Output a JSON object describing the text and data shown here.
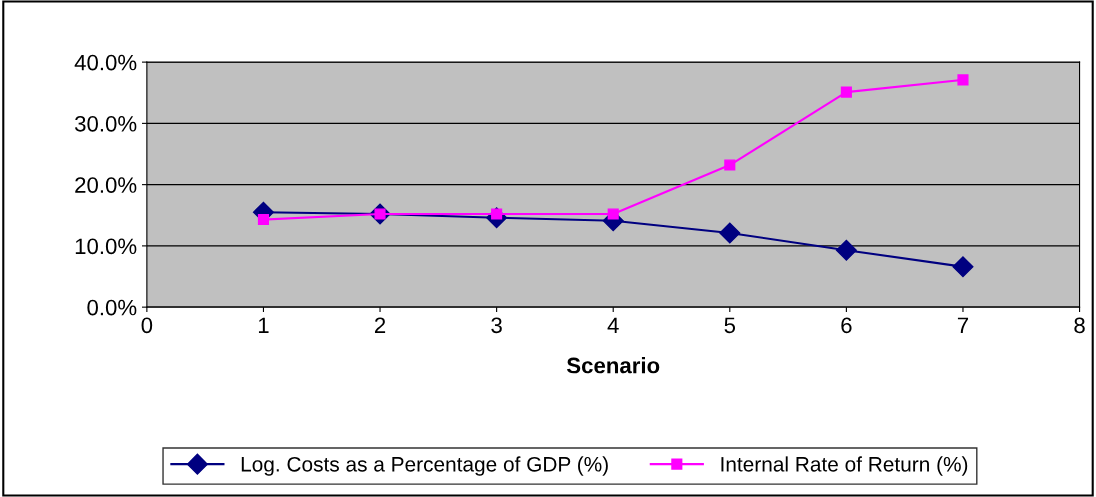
{
  "chart_data": {
    "type": "line",
    "xlabel": "Scenario",
    "x": [
      1,
      2,
      3,
      4,
      5,
      6,
      7
    ],
    "series": [
      {
        "name": "Log. Costs as a Percentage of GDP (%)",
        "color": "#000080",
        "marker": "diamond",
        "values": [
          15.5,
          15.2,
          14.6,
          14.1,
          12.1,
          9.3,
          6.6
        ]
      },
      {
        "name": "Internal Rate of Return (%)",
        "color": "#ff00ff",
        "marker": "square",
        "values": [
          14.3,
          15.2,
          15.2,
          15.2,
          23.2,
          35.1,
          37.1
        ]
      }
    ],
    "xlim": [
      0,
      8
    ],
    "xticks": [
      0,
      1,
      2,
      3,
      4,
      5,
      6,
      7,
      8
    ],
    "ylim": [
      0,
      40
    ],
    "yticks": [
      {
        "value": 0,
        "label": "0.0%"
      },
      {
        "value": 10,
        "label": "10.0%"
      },
      {
        "value": 20,
        "label": "20.0%"
      },
      {
        "value": 30,
        "label": "30.0%"
      },
      {
        "value": 40,
        "label": "40.0%"
      }
    ],
    "grid": "y",
    "legend": "bottom"
  }
}
